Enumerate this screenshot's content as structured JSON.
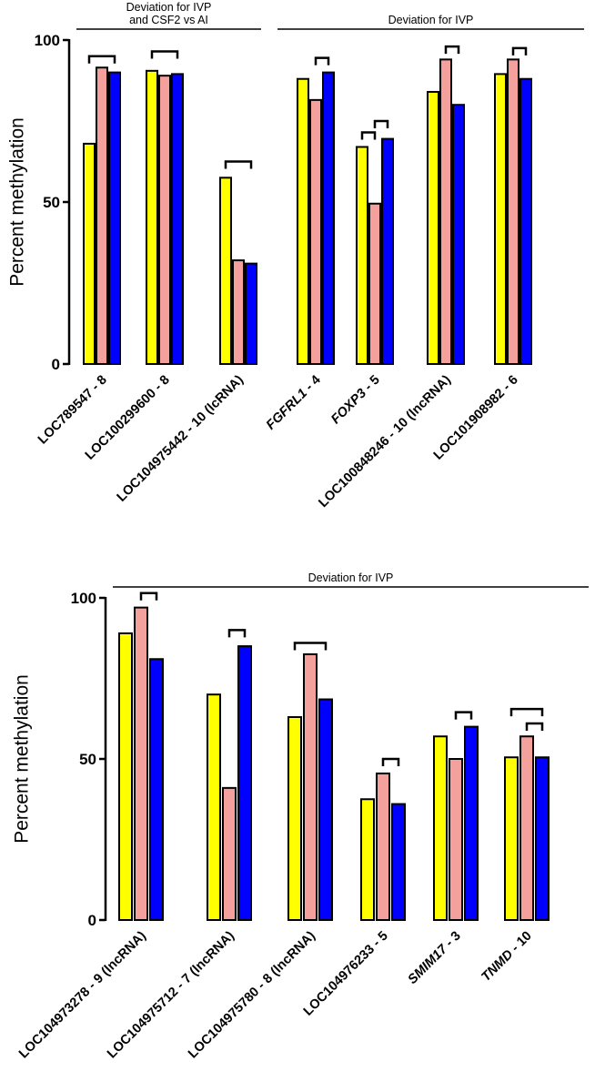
{
  "chart_data": [
    {
      "type": "bar",
      "title": "",
      "xlabel": "",
      "ylabel": "Percent methylation",
      "ylim": [
        0,
        100
      ],
      "yticks": [
        "0",
        "50",
        "100"
      ],
      "categories": [
        "LOC789547 - 8",
        "LOC100299600 - 8",
        "LOC104975442 - 10 (lcRNA)",
        "FGFRL1 - 4",
        "FOXP3 - 5",
        "LOC100848246 - 10 (lncRNA)",
        "LOC101908982 - 6"
      ],
      "italic_gene": [
        "",
        "",
        "",
        "FGFRL1",
        "FOXP3",
        "",
        ""
      ],
      "series": [
        {
          "name": "yellow",
          "color": "#ffff00",
          "values": [
            68,
            90.5,
            57.5,
            88,
            67,
            84,
            89.5
          ]
        },
        {
          "name": "pink",
          "color": "#f4a09c",
          "values": [
            91.5,
            89,
            32,
            81.5,
            49.5,
            94,
            94
          ]
        },
        {
          "name": "blue",
          "color": "#0000ff",
          "values": [
            90,
            89.5,
            31,
            90,
            69.5,
            80,
            88
          ]
        }
      ],
      "brackets": [
        {
          "category": 0,
          "from": 0,
          "to": 2,
          "level": 95
        },
        {
          "category": 1,
          "from": 0,
          "to": 2,
          "level": 96.5
        },
        {
          "category": 2,
          "from": 0,
          "to": 2,
          "level": 62.5
        },
        {
          "category": 3,
          "from": 1,
          "to": 2,
          "level": 94.5
        },
        {
          "category": 4,
          "from": 0,
          "to": 1,
          "level": 71.5
        },
        {
          "category": 4,
          "from": 1,
          "to": 2,
          "level": 75
        },
        {
          "category": 5,
          "from": 1,
          "to": 2,
          "level": 98
        },
        {
          "category": 6,
          "from": 1,
          "to": 2,
          "level": 97.5
        }
      ],
      "group_labels": [
        {
          "lines": [
            "Deviation for IVP",
            "and  CSF2 vs AI"
          ],
          "from_category": 0,
          "to_category": 2
        },
        {
          "lines": [
            "Deviation for IVP"
          ],
          "from_category": 3,
          "to_category": 6
        }
      ],
      "grid": false
    },
    {
      "type": "bar",
      "title": "",
      "xlabel": "",
      "ylabel": "Percent methylation",
      "ylim": [
        0,
        100
      ],
      "yticks": [
        "0",
        "50",
        "100"
      ],
      "categories": [
        "LOC104973278 - 9 (lncRNA)",
        "LOC104975712 - 7 (lncRNA)",
        "LOC104975780 - 8 (lncRNA)",
        "LOC104976233 - 5",
        "SMIM17 - 3",
        "TNMD - 10"
      ],
      "italic_gene": [
        "",
        "",
        "",
        "",
        "SMIM17",
        "TNMD"
      ],
      "series": [
        {
          "name": "yellow",
          "color": "#ffff00",
          "values": [
            89,
            70,
            63,
            37.5,
            57,
            50.5
          ]
        },
        {
          "name": "pink",
          "color": "#f4a09c",
          "values": [
            97,
            41,
            82.5,
            45.5,
            50,
            57
          ]
        },
        {
          "name": "blue",
          "color": "#0000ff",
          "values": [
            81,
            85,
            68.5,
            36,
            60,
            50.5
          ]
        }
      ],
      "brackets": [
        {
          "category": 0,
          "from": 1,
          "to": 2,
          "level": 101.5
        },
        {
          "category": 1,
          "from": 1,
          "to": 2,
          "level": 90
        },
        {
          "category": 2,
          "from": 0,
          "to": 2,
          "level": 86
        },
        {
          "category": 3,
          "from": 1,
          "to": 2,
          "level": 50
        },
        {
          "category": 4,
          "from": 1,
          "to": 2,
          "level": 64.5
        },
        {
          "category": 5,
          "from": 0,
          "to": 2,
          "level": 65.5
        },
        {
          "category": 5,
          "from": 1,
          "to": 2,
          "level": 61
        }
      ],
      "group_labels": [
        {
          "lines": [
            "Deviation for IVP"
          ],
          "from_category": 0,
          "to_category": 5
        }
      ],
      "grid": false
    }
  ]
}
